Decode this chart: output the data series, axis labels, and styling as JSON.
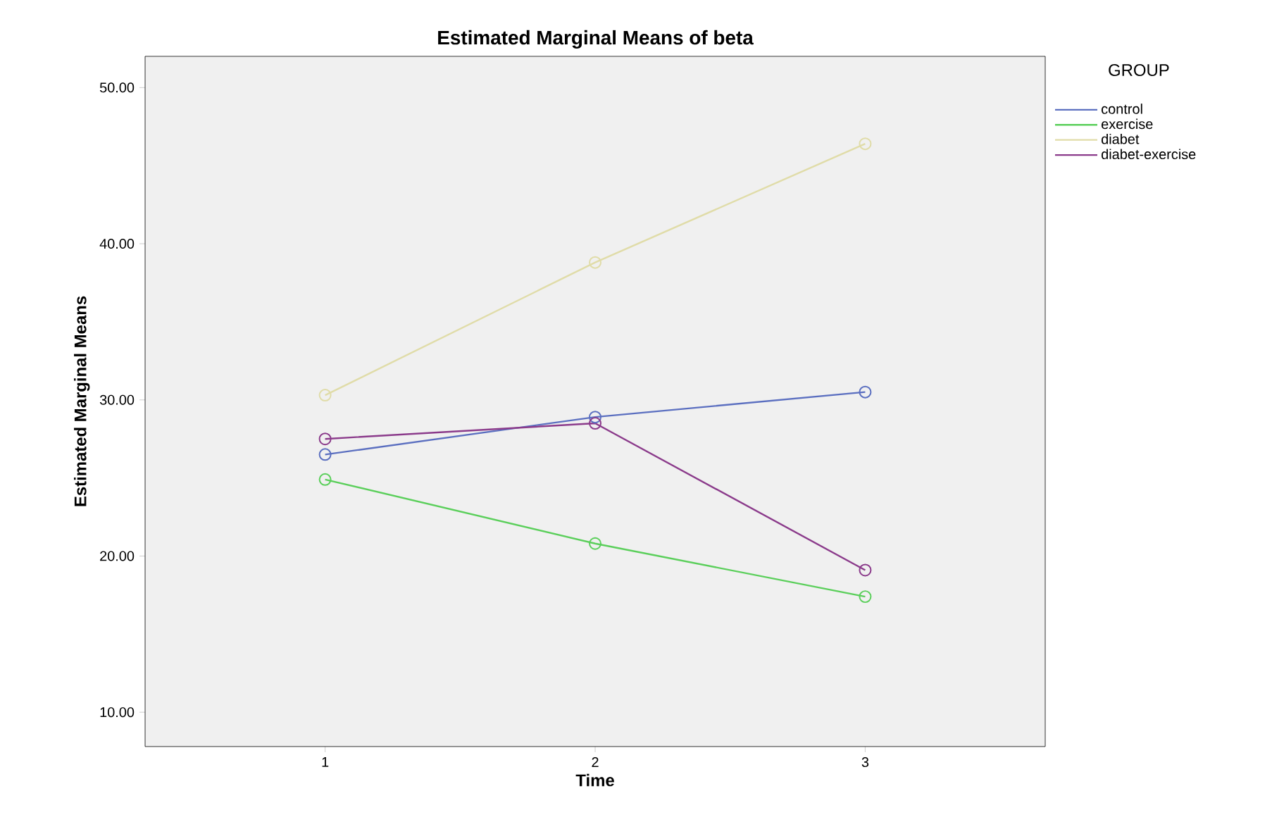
{
  "chart_data": {
    "type": "line",
    "title": "Estimated Marginal Means of beta",
    "xlabel": "Time",
    "ylabel": "Estimated Marginal Means",
    "legend_title": "GROUP",
    "legend": "right",
    "marker": "circle",
    "grid": false,
    "categories": [
      "1",
      "2",
      "3"
    ],
    "ylim": [
      7.8,
      52.0
    ],
    "yticks": [
      {
        "value": 10,
        "label": "10.00"
      },
      {
        "value": 20,
        "label": "20.00"
      },
      {
        "value": 30,
        "label": "30.00"
      },
      {
        "value": 40,
        "label": "40.00"
      },
      {
        "value": 50,
        "label": "50.00"
      }
    ],
    "series": [
      {
        "name": "control",
        "color": "#5b6fc0",
        "values": [
          26.5,
          28.9,
          30.5
        ]
      },
      {
        "name": "exercise",
        "color": "#5bcf5b",
        "values": [
          24.9,
          20.8,
          17.4
        ]
      },
      {
        "name": "diabet",
        "color": "#e0dca8",
        "values": [
          30.3,
          38.8,
          46.4
        ]
      },
      {
        "name": "diabet-exercise",
        "color": "#8b3b8b",
        "values": [
          27.5,
          28.5,
          19.1
        ]
      }
    ]
  }
}
